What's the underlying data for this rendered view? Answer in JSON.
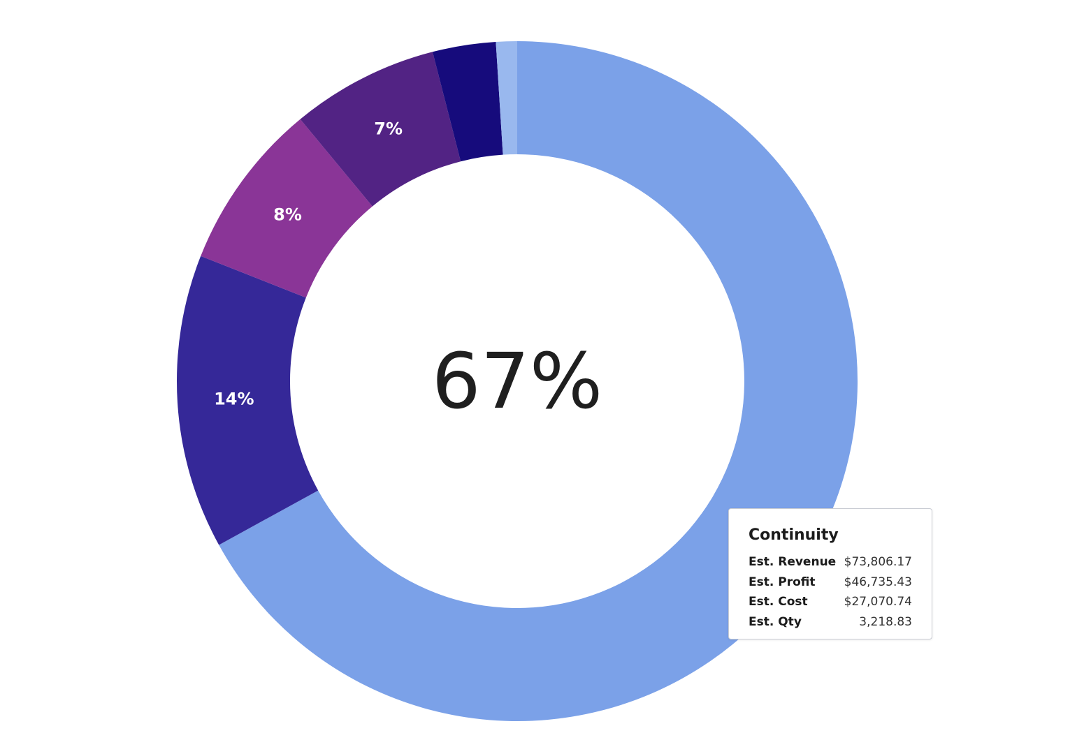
{
  "chart_data": {
    "type": "pie",
    "center_label": "67%",
    "slices": [
      {
        "label": "",
        "value": 67,
        "color": "#7ba1e8",
        "data_label": ""
      },
      {
        "label": "",
        "value": 14,
        "color": "#352898",
        "data_label": "14%"
      },
      {
        "label": "",
        "value": 8,
        "color": "#8a3597",
        "data_label": "8%"
      },
      {
        "label": "",
        "value": 7,
        "color": "#522384",
        "data_label": "7%"
      },
      {
        "label": "",
        "value": 3,
        "color": "#160b7c",
        "data_label": ""
      },
      {
        "label": "",
        "value": 1,
        "color": "#99b8ee",
        "data_label": ""
      }
    ]
  },
  "tooltip": {
    "title": "Continuity",
    "rows": [
      {
        "key": "Est. Revenue",
        "value": "$73,806.17"
      },
      {
        "key": "Est. Profit",
        "value": "$46,735.43"
      },
      {
        "key": "Est. Cost",
        "value": "$27,070.74"
      },
      {
        "key": "Est. Qty",
        "value": "3,218.83"
      }
    ]
  }
}
